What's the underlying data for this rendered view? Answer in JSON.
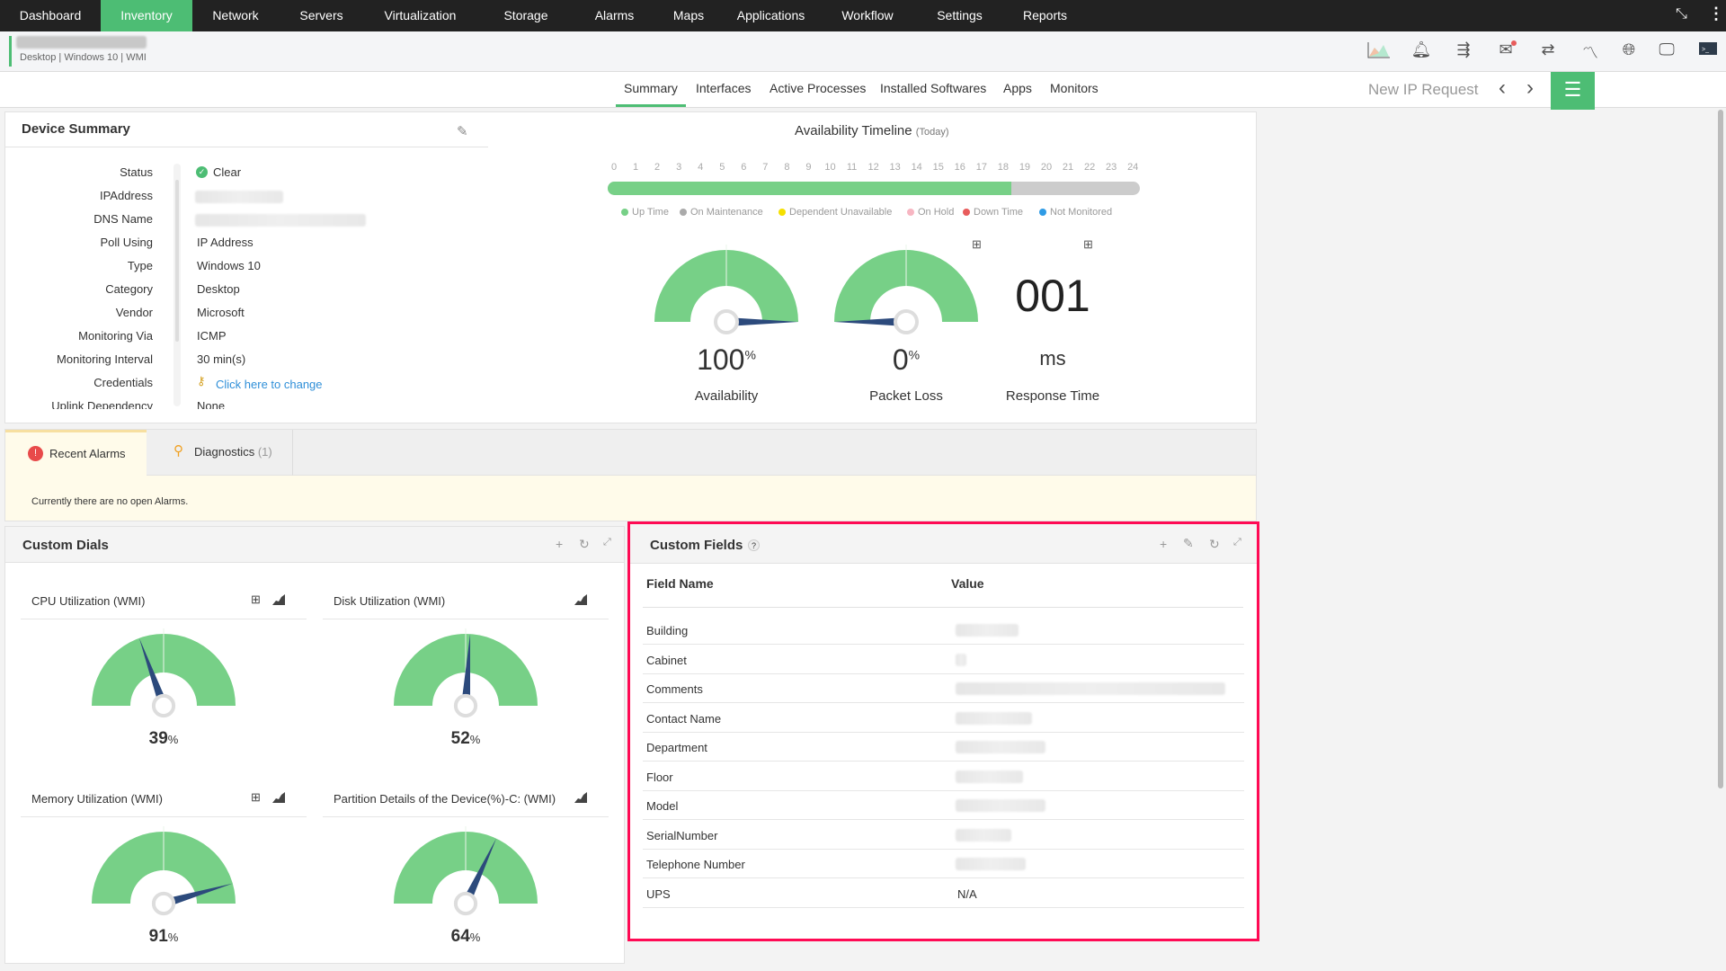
{
  "topnav": {
    "items": [
      "Dashboard",
      "Inventory",
      "Network",
      "Servers",
      "Virtualization",
      "Storage",
      "Alarms",
      "Maps",
      "Applications",
      "Workflow",
      "Settings",
      "Reports"
    ],
    "active": "Inventory",
    "icons": [
      "collapse-icon",
      "more-vertical-icon"
    ]
  },
  "device": {
    "subtitle": "Desktop | Windows 10 | WMI",
    "toolbar_icons": [
      "graph-icon",
      "alarm-bell-icon",
      "workflow-icon",
      "mail-icon",
      "link-icon",
      "path-icon",
      "globe-icon",
      "remote-desktop-icon",
      "terminal-icon"
    ]
  },
  "tabs": [
    "Summary",
    "Interfaces",
    "Active Processes",
    "Installed Softwares",
    "Apps",
    "Monitors"
  ],
  "active_tab": "Summary",
  "new_ip_request": "New IP Request",
  "device_summary": {
    "title": "Device Summary",
    "rows": [
      {
        "label": "Status",
        "value": "Clear"
      },
      {
        "label": "IPAddress",
        "value": ""
      },
      {
        "label": "DNS Name",
        "value": ""
      },
      {
        "label": "Poll Using",
        "value": "IP Address"
      },
      {
        "label": "Type",
        "value": "Windows 10"
      },
      {
        "label": "Category",
        "value": "Desktop"
      },
      {
        "label": "Vendor",
        "value": "Microsoft"
      },
      {
        "label": "Monitoring Via",
        "value": "ICMP"
      },
      {
        "label": "Monitoring Interval",
        "value": "30 min(s)"
      },
      {
        "label": "Credentials",
        "value": "Click here to change"
      },
      {
        "label": "Uplink Dependency",
        "value": "None"
      }
    ]
  },
  "availability": {
    "title": "Availability Timeline",
    "subtitle": "(Today)",
    "hours": [
      "0",
      "1",
      "2",
      "3",
      "4",
      "5",
      "6",
      "7",
      "8",
      "9",
      "10",
      "11",
      "12",
      "13",
      "14",
      "15",
      "16",
      "17",
      "18",
      "19",
      "20",
      "21",
      "22",
      "23",
      "24"
    ],
    "uptime_until_hour": 18.2,
    "legend": [
      {
        "label": "Up Time",
        "color": "#77d087"
      },
      {
        "label": "On Maintenance",
        "color": "#aaaaaa"
      },
      {
        "label": "Dependent Unavailable",
        "color": "#f5e000"
      },
      {
        "label": "On Hold",
        "color": "#f7b6c2"
      },
      {
        "label": "Down Time",
        "color": "#e85c5c"
      },
      {
        "label": "Not Monitored",
        "color": "#2f9be5"
      }
    ],
    "gauges": [
      {
        "value": "100",
        "unit": "%",
        "label": "Availability",
        "percent": 100
      },
      {
        "value": "0",
        "unit": "%",
        "label": "Packet Loss",
        "percent": 0
      }
    ],
    "response_time": {
      "value": "001",
      "unit": "ms",
      "label": "Response Time"
    }
  },
  "alarms": {
    "tabs": [
      {
        "label": "Recent Alarms"
      },
      {
        "label": "Diagnostics",
        "count": "(1)"
      }
    ],
    "message": "Currently there are no open Alarms."
  },
  "custom_dials": {
    "title": "Custom Dials",
    "dials": [
      {
        "title": "CPU Utilization (WMI)",
        "value": "39",
        "unit": "%",
        "percent": 39
      },
      {
        "title": "Disk Utilization (WMI)",
        "value": "52",
        "unit": "%",
        "percent": 52
      },
      {
        "title": "Memory Utilization (WMI)",
        "value": "91",
        "unit": "%",
        "percent": 91
      },
      {
        "title": "Partition Details of the Device(%)-C: (WMI)",
        "value": "64",
        "unit": "%",
        "percent": 64
      }
    ]
  },
  "custom_fields": {
    "title": "Custom Fields",
    "help": "?",
    "headers": [
      "Field Name",
      "Value"
    ],
    "rows": [
      {
        "name": "Building",
        "value": ""
      },
      {
        "name": "Cabinet",
        "value": ""
      },
      {
        "name": "Comments",
        "value": ""
      },
      {
        "name": "Contact Name",
        "value": ""
      },
      {
        "name": "Department",
        "value": ""
      },
      {
        "name": "Floor",
        "value": ""
      },
      {
        "name": "Model",
        "value": ""
      },
      {
        "name": "SerialNumber",
        "value": ""
      },
      {
        "name": "Telephone Number",
        "value": ""
      },
      {
        "name": "UPS",
        "value": "N/A"
      }
    ]
  },
  "colors": {
    "accent": "#4dbd74",
    "gauge": "#77d087",
    "needle": "#2c4a7c",
    "highlight": "#ff0a54",
    "link": "#2f8fd8"
  }
}
